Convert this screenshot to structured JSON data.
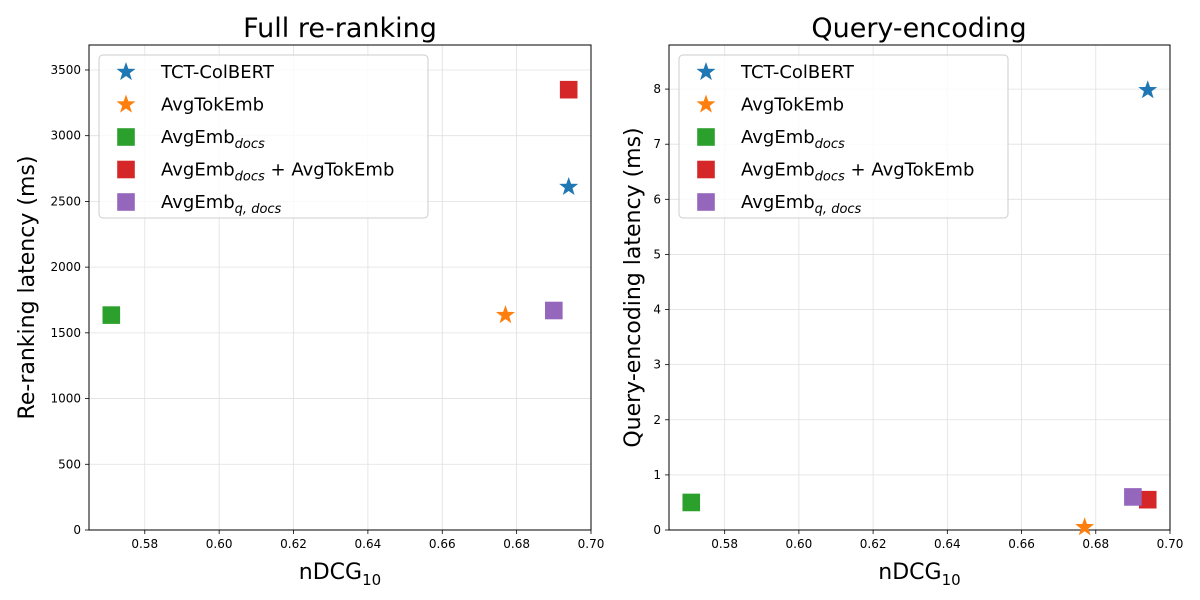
{
  "chart_data": [
    {
      "type": "scatter",
      "title": "Full re-ranking",
      "xlabel": "nDCG",
      "xlabel_sub": "10",
      "ylabel": "Re-ranking latency (ms)",
      "xlim": [
        0.565,
        0.7
      ],
      "ylim": [
        0,
        3690
      ],
      "xticks": [
        "0.58",
        "0.60",
        "0.62",
        "0.64",
        "0.66",
        "0.68",
        "0.70"
      ],
      "yticks": [
        "0",
        "500",
        "1000",
        "1500",
        "2000",
        "2500",
        "3000",
        "3500"
      ],
      "grid": true,
      "legend_position": "top-left",
      "series": [
        {
          "name": "TCT-ColBERT",
          "name_sub": "",
          "name_suffix": "",
          "marker": "star",
          "color": "#1f77b4",
          "points": [
            {
              "x": 0.694,
              "y": 2610
            }
          ]
        },
        {
          "name": "AvgTokEmb",
          "name_sub": "",
          "name_suffix": "",
          "marker": "star",
          "color": "#ff7f0e",
          "points": [
            {
              "x": 0.677,
              "y": 1635
            }
          ]
        },
        {
          "name": "AvgEmb",
          "name_sub": "docs",
          "name_suffix": "",
          "marker": "square",
          "color": "#2ca02c",
          "points": [
            {
              "x": 0.571,
              "y": 1635
            }
          ]
        },
        {
          "name": "AvgEmb",
          "name_sub": "docs",
          "name_suffix": " + AvgTokEmb",
          "marker": "square",
          "color": "#d62728",
          "points": [
            {
              "x": 0.694,
              "y": 3350
            }
          ]
        },
        {
          "name": "AvgEmb",
          "name_sub": "q, docs",
          "name_suffix": "",
          "marker": "square",
          "color": "#9467bd",
          "points": [
            {
              "x": 0.69,
              "y": 1670
            }
          ]
        }
      ]
    },
    {
      "type": "scatter",
      "title": "Query-encoding",
      "xlabel": "nDCG",
      "xlabel_sub": "10",
      "ylabel": "Query-encoding latency (ms)",
      "xlim": [
        0.565,
        0.7
      ],
      "ylim": [
        0,
        8.8
      ],
      "xticks": [
        "0.58",
        "0.60",
        "0.62",
        "0.64",
        "0.66",
        "0.68",
        "0.70"
      ],
      "yticks": [
        "0",
        "1",
        "2",
        "3",
        "4",
        "5",
        "6",
        "7",
        "8"
      ],
      "grid": true,
      "legend_position": "top-left",
      "series": [
        {
          "name": "TCT-ColBERT",
          "name_sub": "",
          "name_suffix": "",
          "marker": "star",
          "color": "#1f77b4",
          "points": [
            {
              "x": 0.694,
              "y": 7.98
            }
          ]
        },
        {
          "name": "AvgTokEmb",
          "name_sub": "",
          "name_suffix": "",
          "marker": "star",
          "color": "#ff7f0e",
          "points": [
            {
              "x": 0.677,
              "y": 0.05
            }
          ]
        },
        {
          "name": "AvgEmb",
          "name_sub": "docs",
          "name_suffix": "",
          "marker": "square",
          "color": "#2ca02c",
          "points": [
            {
              "x": 0.571,
              "y": 0.5
            }
          ]
        },
        {
          "name": "AvgEmb",
          "name_sub": "docs",
          "name_suffix": " + AvgTokEmb",
          "marker": "square",
          "color": "#d62728",
          "points": [
            {
              "x": 0.694,
              "y": 0.55
            }
          ]
        },
        {
          "name": "AvgEmb",
          "name_sub": "q, docs",
          "name_suffix": "",
          "marker": "square",
          "color": "#9467bd",
          "points": [
            {
              "x": 0.69,
              "y": 0.6
            }
          ]
        }
      ]
    }
  ]
}
